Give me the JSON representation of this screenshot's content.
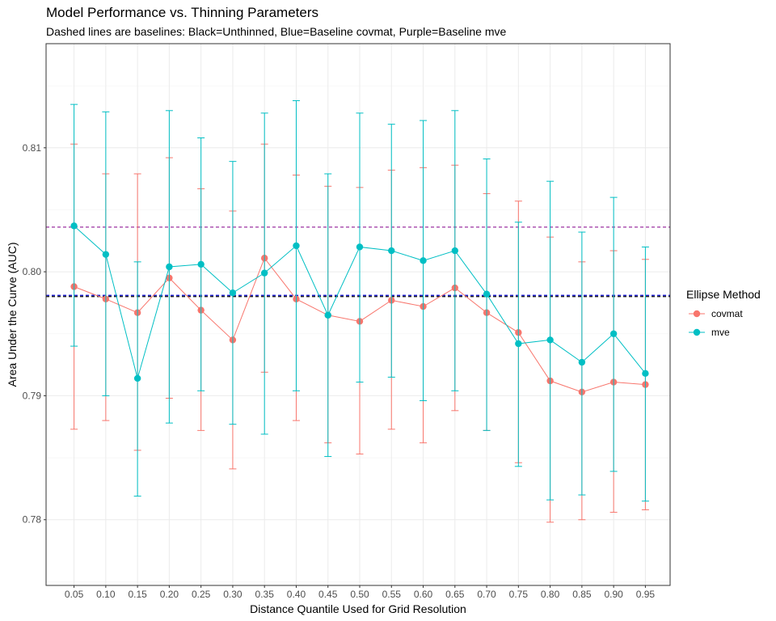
{
  "chart_data": {
    "type": "line",
    "title": "Model Performance vs. Thinning Parameters",
    "subtitle": "Dashed lines are baselines: Black=Unthinned, Blue=Baseline covmat, Purple=Baseline mve",
    "xlabel": "Distance Quantile Used for Grid Resolution",
    "ylabel": "Area Under the Curve (AUC)",
    "x_tick_labels": [
      "0.05",
      "0.10",
      "0.15",
      "0.20",
      "0.25",
      "0.30",
      "0.35",
      "0.40",
      "0.45",
      "0.50",
      "0.55",
      "0.60",
      "0.65",
      "0.70",
      "0.75",
      "0.80",
      "0.85",
      "0.90",
      "0.95"
    ],
    "x": [
      0.05,
      0.1,
      0.15,
      0.2,
      0.25,
      0.3,
      0.35,
      0.4,
      0.45,
      0.5,
      0.55,
      0.6,
      0.65,
      0.7,
      0.75,
      0.8,
      0.85,
      0.9,
      0.95
    ],
    "y_ticks": [
      0.78,
      0.79,
      0.8,
      0.81
    ],
    "y_tick_labels": [
      "0.78",
      "0.79",
      "0.80",
      "0.81"
    ],
    "ylim": [
      0.7747,
      0.8184
    ],
    "grid": true,
    "legend_position": "right",
    "legend_title": "Ellipse Method",
    "series": [
      {
        "name": "covmat",
        "color": "#F8766D",
        "values": [
          0.7988,
          0.7978,
          0.7967,
          0.7995,
          0.7969,
          0.7945,
          0.8011,
          0.7978,
          0.7965,
          0.796,
          0.7977,
          0.7972,
          0.7987,
          0.7967,
          0.7951,
          0.7912,
          0.7903,
          0.7911,
          0.7909
        ],
        "lower": [
          0.7873,
          0.788,
          0.7856,
          0.7898,
          0.7872,
          0.7841,
          0.7919,
          0.788,
          0.7862,
          0.7853,
          0.7873,
          0.7862,
          0.7888,
          0.7872,
          0.7846,
          0.7798,
          0.78,
          0.7806,
          0.7808
        ],
        "upper": [
          0.8103,
          0.8079,
          0.8079,
          0.8092,
          0.8067,
          0.8049,
          0.8103,
          0.8078,
          0.8069,
          0.8068,
          0.8082,
          0.8084,
          0.8086,
          0.8063,
          0.8057,
          0.8028,
          0.8008,
          0.8017,
          0.801
        ]
      },
      {
        "name": "mve",
        "color": "#00BFC4",
        "values": [
          0.8037,
          0.8014,
          0.7914,
          0.8004,
          0.8006,
          0.7983,
          0.7999,
          0.8021,
          0.7965,
          0.802,
          0.8017,
          0.8009,
          0.8017,
          0.7982,
          0.7942,
          0.7945,
          0.7927,
          0.795,
          0.7918
        ],
        "lower": [
          0.794,
          0.79,
          0.7819,
          0.7878,
          0.7904,
          0.7877,
          0.7869,
          0.7904,
          0.7851,
          0.7911,
          0.7915,
          0.7896,
          0.7904,
          0.7872,
          0.7843,
          0.7816,
          0.782,
          0.7839,
          0.7815
        ],
        "upper": [
          0.8135,
          0.8129,
          0.8008,
          0.813,
          0.8108,
          0.8089,
          0.8128,
          0.8138,
          0.8079,
          0.8128,
          0.8119,
          0.8122,
          0.813,
          0.8091,
          0.804,
          0.8073,
          0.8032,
          0.806,
          0.802
        ]
      }
    ],
    "baselines": [
      {
        "value": 0.798,
        "color": "#000000"
      },
      {
        "value": 0.7981,
        "color": "#0000CD"
      },
      {
        "value": 0.8036,
        "color": "#9B30A0"
      }
    ]
  }
}
